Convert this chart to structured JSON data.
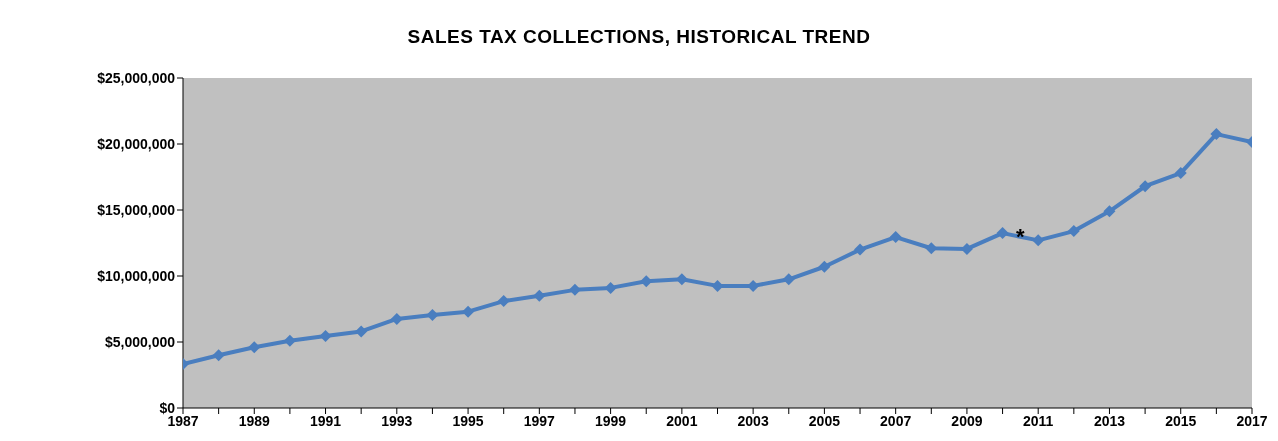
{
  "chart_data": {
    "type": "line",
    "title": "SALES TAX COLLECTIONS, HISTORICAL TREND",
    "x": [
      1987,
      1988,
      1989,
      1990,
      1991,
      1992,
      1993,
      1994,
      1995,
      1996,
      1997,
      1998,
      1999,
      2000,
      2001,
      2002,
      2003,
      2004,
      2005,
      2006,
      2007,
      2008,
      2009,
      2010,
      2011,
      2012,
      2013,
      2014,
      2015,
      2016,
      2017
    ],
    "series": [
      {
        "color": "#4a7ebf",
        "values": [
          3330000,
          4000000,
          4600000,
          5100000,
          5450000,
          5800000,
          6750000,
          7050000,
          7300000,
          8100000,
          8500000,
          8950000,
          9100000,
          9600000,
          9750000,
          9250000,
          9250000,
          9750000,
          10700000,
          12000000,
          12950000,
          12100000,
          12050000,
          13250000,
          12700000,
          13400000,
          14900000,
          16800000,
          17800000,
          20750000,
          20150000
        ]
      }
    ],
    "xlim": [
      1987,
      2017
    ],
    "xticks": [
      1987,
      {
        "value": 1988,
        "label": null
      },
      1989,
      {
        "value": 1990,
        "label": null
      },
      1991,
      {
        "value": 1992,
        "label": null
      },
      1993,
      {
        "value": 1994,
        "label": null
      },
      1995,
      {
        "value": 1996,
        "label": null
      },
      1997,
      {
        "value": 1998,
        "label": null
      },
      1999,
      {
        "value": 2000,
        "label": null
      },
      2001,
      {
        "value": 2002,
        "label": null
      },
      2003,
      {
        "value": 2004,
        "label": null
      },
      2005,
      {
        "value": 2006,
        "label": null
      },
      2007,
      {
        "value": 2008,
        "label": null
      },
      2009,
      {
        "value": 2010,
        "label": null
      },
      2011,
      {
        "value": 2012,
        "label": null
      },
      2013,
      {
        "value": 2014,
        "label": null
      },
      2015,
      {
        "value": 2016,
        "label": null
      },
      2017
    ],
    "ylim": [
      0,
      25000000
    ],
    "yticks": [
      {
        "value": 0,
        "label": "$0"
      },
      {
        "value": 5000000,
        "label": "$5,000,000"
      },
      {
        "value": 10000000,
        "label": "$10,000,000"
      },
      {
        "value": 15000000,
        "label": "$15,000,000"
      },
      {
        "value": 20000000,
        "label": "$20,000,000"
      },
      {
        "value": 25000000,
        "label": "$25,000,000"
      }
    ],
    "annotations": [
      {
        "text": "*",
        "x": 2010.5,
        "y": 13000000
      }
    ],
    "marker": "diamond",
    "grid": false,
    "legend": false
  }
}
